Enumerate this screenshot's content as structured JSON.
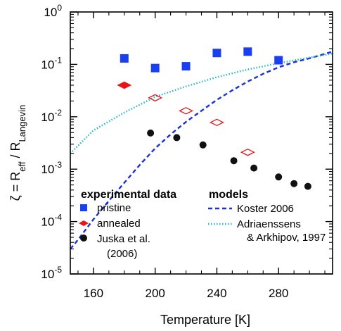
{
  "chart_data": {
    "type": "scatter",
    "xlabel": "Temperature  [K]",
    "ylabel": {
      "lead": "ζ = R",
      "sub1": "eff",
      "mid": " / R",
      "sub2": "Langevin"
    },
    "xlim": [
      145,
      315
    ],
    "ylim": [
      1e-05,
      1
    ],
    "yscale": "log",
    "grid": false,
    "legend_position": "bottom",
    "xticks": [
      {
        "value": 160,
        "label": "160"
      },
      {
        "value": 200,
        "label": "200"
      },
      {
        "value": 240,
        "label": "240"
      },
      {
        "value": 280,
        "label": "280"
      }
    ],
    "yticks": [
      {
        "value": 1,
        "base": "10",
        "exp": "0"
      },
      {
        "value": 0.1,
        "base": "10",
        "exp": "-1"
      },
      {
        "value": 0.01,
        "base": "10",
        "exp": "-2"
      },
      {
        "value": 0.001,
        "base": "10",
        "exp": "-3"
      },
      {
        "value": 0.0001,
        "base": "10",
        "exp": "-4"
      },
      {
        "value": 1e-05,
        "base": "10",
        "exp": "-5"
      }
    ],
    "series": [
      {
        "name": "pristine",
        "marker": "square",
        "color": "#1a3ff0",
        "x": [
          180,
          200,
          220,
          240,
          260,
          280
        ],
        "y": [
          0.13,
          0.085,
          0.092,
          0.165,
          0.175,
          0.12
        ]
      },
      {
        "name": "annealed",
        "marker": "diamond",
        "color": "#e8141b",
        "x": [
          180
        ],
        "y": [
          0.04
        ]
      },
      {
        "name": "annealed (open)",
        "marker": "diamond-open",
        "color": "#e8141b",
        "x": [
          200,
          220,
          240,
          260
        ],
        "y": [
          0.023,
          0.013,
          0.0078,
          0.0021
        ]
      },
      {
        "name": "Juska et al. (2006)",
        "marker": "circle",
        "color": "#111111",
        "x": [
          197,
          214,
          231,
          251,
          264,
          280,
          290,
          299
        ],
        "y": [
          0.0049,
          0.004,
          0.0029,
          0.00145,
          0.00105,
          0.00071,
          0.00053,
          0.00047
        ]
      }
    ],
    "models": [
      {
        "name": "Koster 2006",
        "style": "dashed",
        "color": "#1a30d8",
        "x": [
          145,
          150,
          160,
          170,
          180,
          190,
          200,
          210,
          220,
          230,
          240,
          250,
          260,
          270,
          280,
          290,
          300,
          315
        ],
        "y": [
          3e-05,
          4.5e-05,
          0.00011,
          0.00025,
          0.00055,
          0.0012,
          0.0025,
          0.0046,
          0.008,
          0.013,
          0.021,
          0.032,
          0.047,
          0.066,
          0.088,
          0.11,
          0.13,
          0.175
        ]
      },
      {
        "name": "Adriaenssens & Arkhipov, 1997",
        "style": "dotted",
        "color": "#1fb9c6",
        "x": [
          145,
          160,
          180,
          200,
          220,
          240,
          260,
          280,
          300,
          315
        ],
        "y": [
          0.002,
          0.0055,
          0.012,
          0.024,
          0.038,
          0.057,
          0.08,
          0.105,
          0.135,
          0.16
        ]
      }
    ],
    "legend": {
      "experimental_title": "experimental data",
      "models_title": "models",
      "pristine": "pristine",
      "annealed": "annealed",
      "juska_line1": "Juska et al.",
      "juska_line2": "(2006)",
      "koster": "Koster 2006",
      "adri_line1": "Adriaenssens",
      "adri_line2": "& Arkhipov, 1997"
    }
  }
}
